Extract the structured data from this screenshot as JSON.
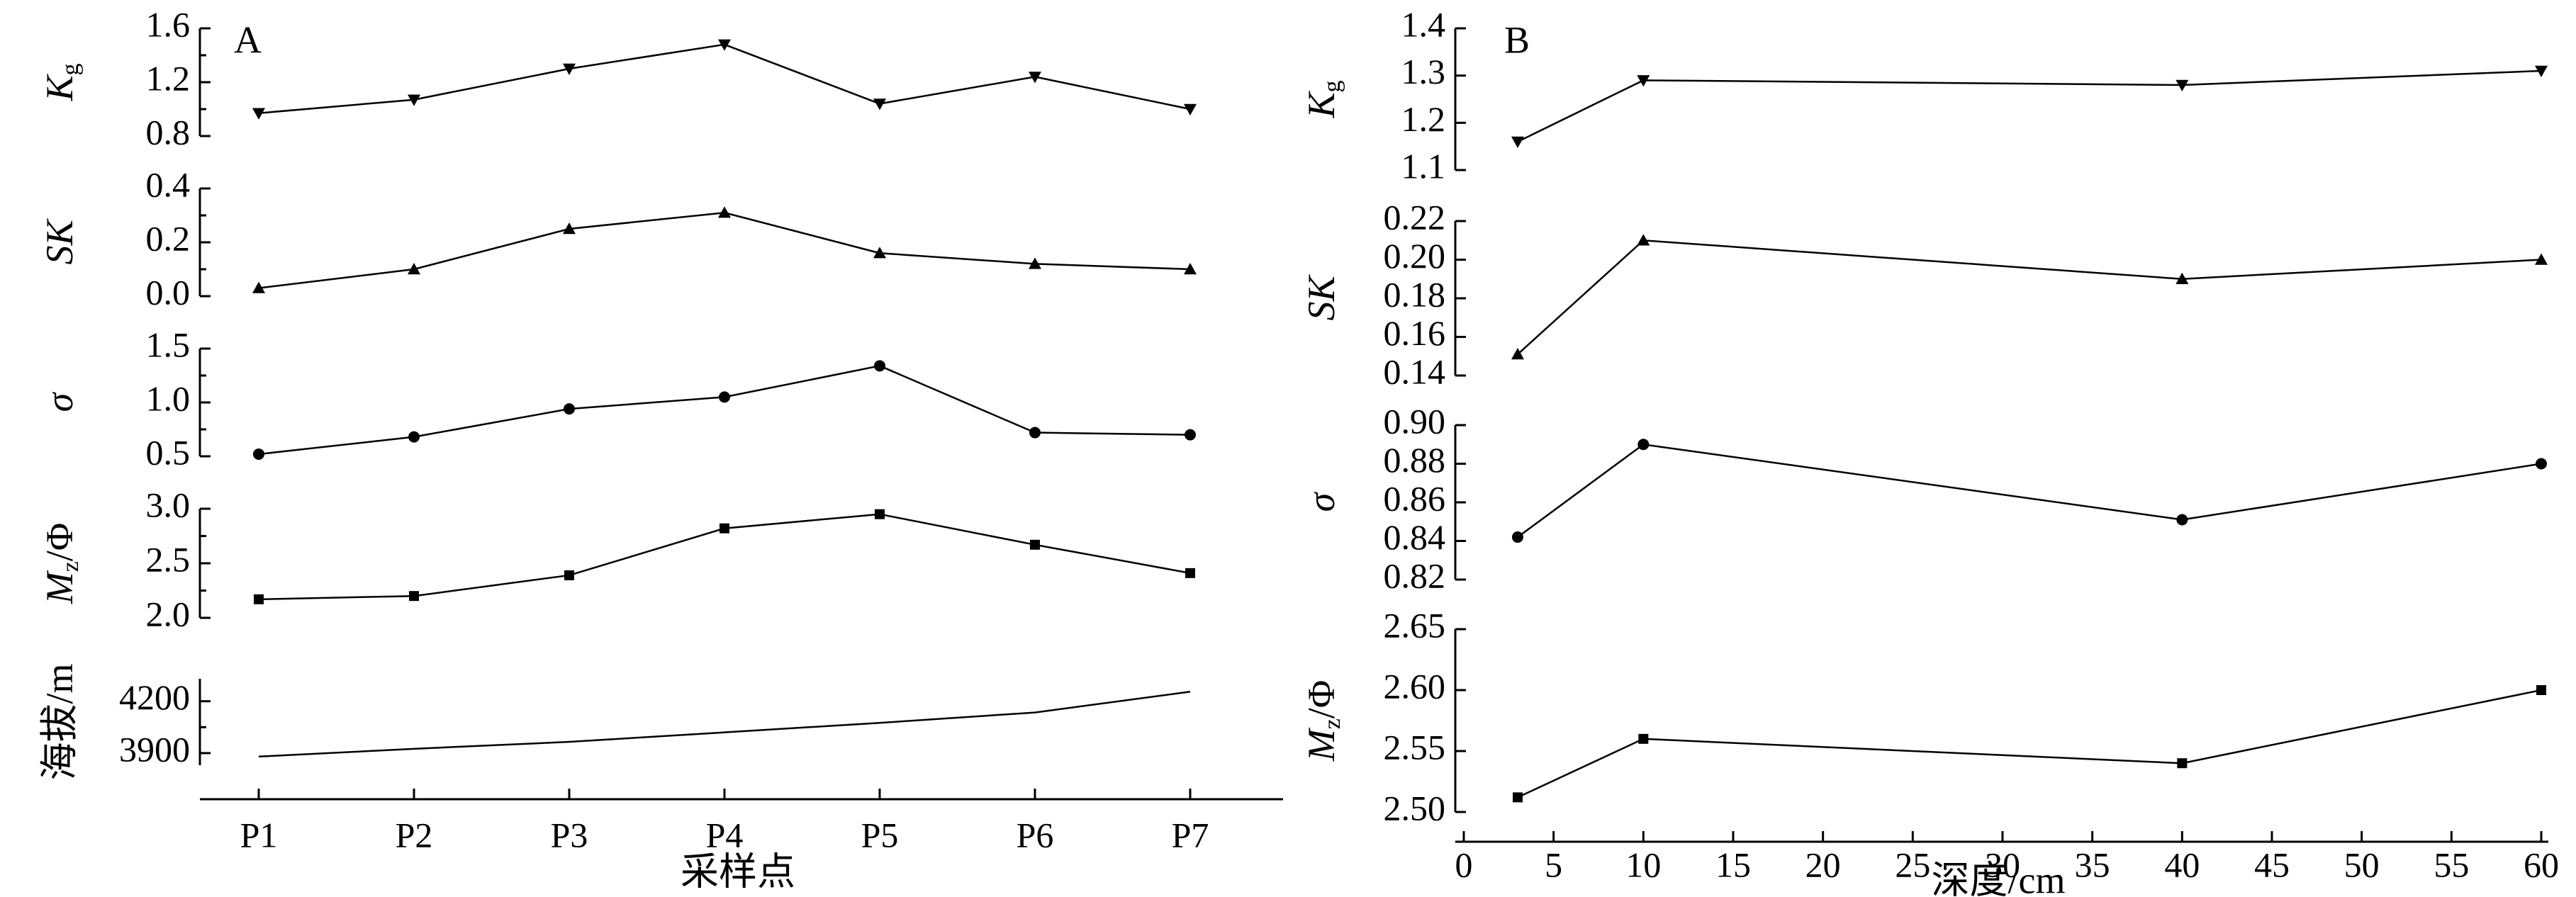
{
  "chart_data": [
    {
      "panel": "A",
      "type": "line",
      "categories": [
        "P1",
        "P2",
        "P3",
        "P4",
        "P5",
        "P6",
        "P7"
      ],
      "xlabel": "采样点",
      "subplots": [
        {
          "ylabel": "K",
          "ylabel_sub": "g",
          "ylim": [
            0.8,
            1.6
          ],
          "yticks": [
            "0.8",
            "1.2",
            "1.6"
          ],
          "minor_ticks": [
            1.0,
            1.4
          ],
          "marker": "triangle-down",
          "series": [
            {
              "values": [
                0.97,
                1.07,
                1.3,
                1.48,
                1.04,
                1.24,
                1.0
              ]
            }
          ]
        },
        {
          "ylabel": "SK",
          "ylim": [
            0.0,
            0.4
          ],
          "yticks": [
            "0.0",
            "0.2",
            "0.4"
          ],
          "minor_ticks": [
            0.1,
            0.3
          ],
          "marker": "triangle-up",
          "series": [
            {
              "values": [
                0.03,
                0.1,
                0.25,
                0.31,
                0.16,
                0.12,
                0.1
              ]
            }
          ]
        },
        {
          "ylabel": "σ",
          "ylim": [
            0.5,
            1.5
          ],
          "yticks": [
            "0.5",
            "1.0",
            "1.5"
          ],
          "minor_ticks": [
            0.75,
            1.25
          ],
          "marker": "circle",
          "series": [
            {
              "values": [
                0.52,
                0.68,
                0.94,
                1.05,
                1.34,
                0.72,
                0.7
              ]
            }
          ]
        },
        {
          "ylabel": "M",
          "ylabel_sub": "z",
          "ylabel_suffix": "/Φ",
          "ylim": [
            2.0,
            3.0
          ],
          "yticks": [
            "2.0",
            "2.5",
            "3.0"
          ],
          "minor_ticks": [
            2.25,
            2.75
          ],
          "marker": "square",
          "series": [
            {
              "values": [
                2.17,
                2.2,
                2.39,
                2.82,
                2.95,
                2.67,
                2.41
              ]
            }
          ]
        },
        {
          "ylabel": "海拔/m",
          "ylim": [
            3830,
            4330
          ],
          "yticks": [
            "3900",
            "4200"
          ],
          "minor_ticks": [
            4050
          ],
          "marker": "none",
          "series": [
            {
              "values": [
                3880,
                3925,
                3965,
                4020,
                4075,
                4135,
                4255
              ]
            }
          ]
        }
      ]
    },
    {
      "panel": "B",
      "type": "line",
      "x": [
        3,
        10,
        40,
        60
      ],
      "xlim": [
        0,
        60
      ],
      "xticks": [
        "0",
        "5",
        "10",
        "15",
        "20",
        "25",
        "30",
        "35",
        "40",
        "45",
        "50",
        "55",
        "60"
      ],
      "xlabel": "深度/cm",
      "subplots": [
        {
          "ylabel": "K",
          "ylabel_sub": "g",
          "ylim": [
            1.1,
            1.4
          ],
          "yticks": [
            "1.1",
            "1.2",
            "1.3",
            "1.4"
          ],
          "marker": "triangle-down",
          "series": [
            {
              "values": [
                1.16,
                1.29,
                1.28,
                1.31
              ]
            }
          ]
        },
        {
          "ylabel": "SK",
          "ylim": [
            0.14,
            0.22
          ],
          "yticks": [
            "0.14",
            "0.16",
            "0.18",
            "0.20",
            "0.22"
          ],
          "marker": "triangle-up",
          "series": [
            {
              "values": [
                0.151,
                0.21,
                0.19,
                0.2
              ]
            }
          ]
        },
        {
          "ylabel": "σ",
          "ylim": [
            0.82,
            0.9
          ],
          "yticks": [
            "0.82",
            "0.84",
            "0.86",
            "0.88",
            "0.90"
          ],
          "marker": "circle",
          "series": [
            {
              "values": [
                0.842,
                0.89,
                0.851,
                0.88
              ]
            }
          ]
        },
        {
          "ylabel": "M",
          "ylabel_sub": "z",
          "ylabel_suffix": "/Φ",
          "ylim": [
            2.5,
            2.65
          ],
          "yticks": [
            "2.50",
            "2.55",
            "2.60",
            "2.65"
          ],
          "marker": "square",
          "series": [
            {
              "values": [
                2.512,
                2.56,
                2.54,
                2.6
              ]
            }
          ]
        }
      ]
    }
  ]
}
